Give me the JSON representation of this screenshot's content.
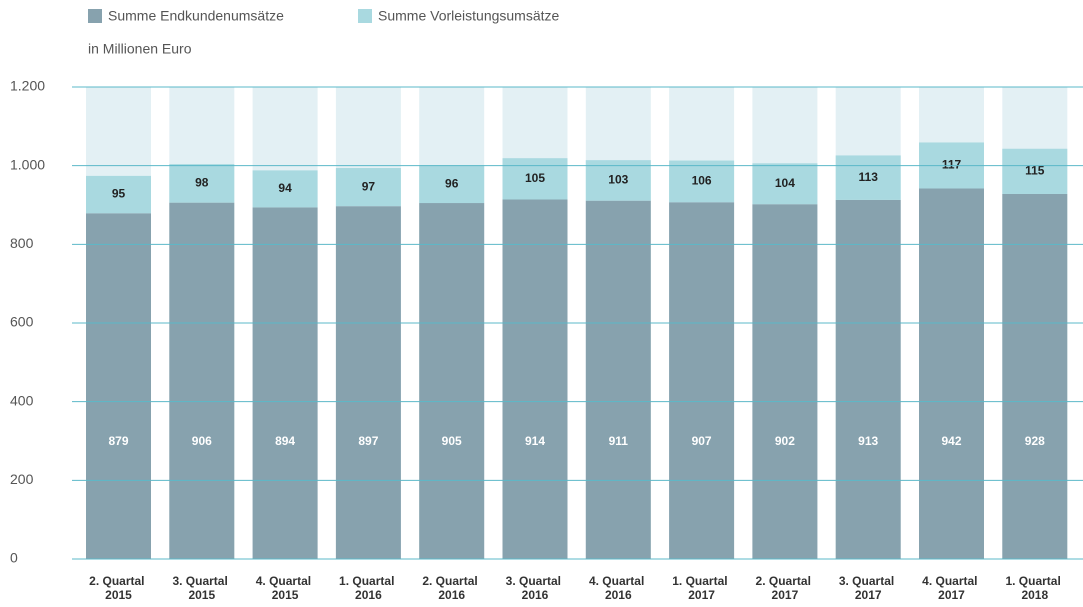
{
  "chart_data": {
    "type": "stacked_bar",
    "subtitle": "in Millionen Euro",
    "categories": [
      "2. Quartal 2015",
      "3. Quartal 2015",
      "4. Quartal 2015",
      "1. Quartal 2016",
      "2. Quartal 2016",
      "3. Quartal 2016",
      "4. Quartal 2016",
      "1. Quartal 2017",
      "2. Quartal 2017",
      "3. Quartal 2017",
      "4. Quartal 2017",
      "1. Quartal 2018"
    ],
    "series": [
      {
        "name": "Summe Endkundenumsätze",
        "color": "#87a2ae",
        "values": [
          879,
          906,
          894,
          897,
          905,
          914,
          911,
          907,
          902,
          913,
          942,
          928
        ]
      },
      {
        "name": "Summe Vorleistungsumsätze",
        "color": "#a9d9e0",
        "values": [
          95,
          98,
          94,
          97,
          96,
          105,
          103,
          106,
          104,
          113,
          117,
          115
        ]
      }
    ],
    "ylim": [
      0,
      1200
    ],
    "yticks": [
      0,
      200,
      400,
      600,
      800,
      {
        "value": 1000,
        "label": "1.000"
      },
      {
        "value": 1200,
        "label": "1.200"
      }
    ],
    "grid": true,
    "background_color": "#e3f0f4",
    "grid_color": "#5bb8c8",
    "legend": "top-left"
  }
}
